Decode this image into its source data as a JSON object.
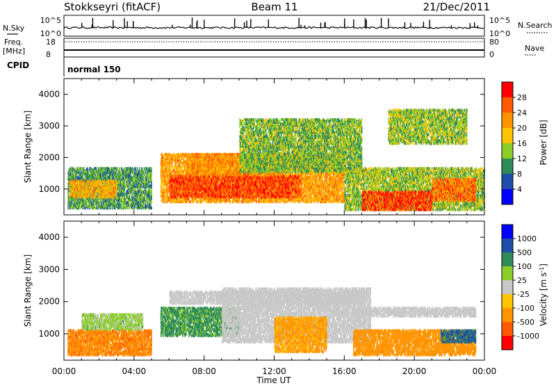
{
  "header": {
    "station": "Stokkseyri (fitACF)",
    "beam": "Beam 11",
    "date": "21/Dec/2011"
  },
  "params": {
    "nsky_label": "N.Sky",
    "nsearch_label": "N.Search",
    "noise_ticks": [
      "10^5",
      "10^0"
    ],
    "freq_label_1": "Freq.",
    "freq_label_2": "[MHz]",
    "freq_ticks": [
      "18",
      "8"
    ],
    "nave_label": "Nave",
    "nave_ticks": [
      "80",
      "0"
    ],
    "cpid_label": "CPID",
    "cpid_value": "normal 150"
  },
  "chart_data": [
    {
      "type": "heatmap",
      "title": "",
      "xlabel": "Time UT",
      "ylabel": "Slant Range [km]",
      "x_ticks": [
        "00:00",
        "04:00",
        "08:00",
        "12:00",
        "16:00",
        "20:00",
        "00:00"
      ],
      "x_range_hours": [
        0,
        24
      ],
      "y_ticks": [
        1000,
        2000,
        3000,
        4000
      ],
      "ylim": [
        180,
        4500
      ],
      "colorbar": {
        "label": "Power [dB]",
        "ticks": [
          "28",
          "24",
          "20",
          "16",
          "12",
          "8",
          "4"
        ],
        "colors": [
          "#ff0000",
          "#ff5a00",
          "#ff9400",
          "#ffc300",
          "#8ccd2a",
          "#2e8a58",
          "#1f4ea8",
          "#0000ff"
        ]
      },
      "regions": [
        {
          "t": [
            0.2,
            5.0
          ],
          "r": [
            350,
            1650
          ],
          "v": 11
        },
        {
          "t": [
            0.3,
            3.0
          ],
          "r": [
            700,
            1250
          ],
          "v": 20
        },
        {
          "t": [
            5.5,
            16.0
          ],
          "r": [
            550,
            2100
          ],
          "v": 21
        },
        {
          "t": [
            6.0,
            13.5
          ],
          "r": [
            700,
            1400
          ],
          "v": 27
        },
        {
          "t": [
            7.0,
            12.5
          ],
          "r": [
            1400,
            2100
          ],
          "v": 22
        },
        {
          "t": [
            10.0,
            17.0
          ],
          "r": [
            1500,
            3200
          ],
          "v": 13
        },
        {
          "t": [
            16.0,
            24.0
          ],
          "r": [
            300,
            1650
          ],
          "v": 14
        },
        {
          "t": [
            17.0,
            21.0
          ],
          "r": [
            300,
            900
          ],
          "v": 27
        },
        {
          "t": [
            21.0,
            23.5
          ],
          "r": [
            600,
            1300
          ],
          "v": 24
        },
        {
          "t": [
            18.5,
            23.0
          ],
          "r": [
            2400,
            3500
          ],
          "v": 14
        }
      ]
    },
    {
      "type": "heatmap",
      "title": "",
      "xlabel": "Time UT",
      "ylabel": "Slant Range [km]",
      "x_ticks": [
        "00:00",
        "04:00",
        "08:00",
        "12:00",
        "16:00",
        "20:00",
        "00:00"
      ],
      "x_range_hours": [
        0,
        24
      ],
      "y_ticks": [
        1000,
        2000,
        3000,
        4000
      ],
      "ylim": [
        180,
        4500
      ],
      "colorbar": {
        "label": "Velocity [m s^-1]",
        "ticks": [
          "1000",
          "500",
          "100",
          "25",
          "-25",
          "-100",
          "-500",
          "-1000"
        ],
        "colors": [
          "#0000ff",
          "#1f4ea8",
          "#2e8a58",
          "#8ccd2a",
          "#c8c8c8",
          "#ffc300",
          "#ff9400",
          "#ff5a00",
          "#ff0000"
        ]
      },
      "regions": [
        {
          "t": [
            0.2,
            5.0
          ],
          "r": [
            300,
            1100
          ],
          "v": -400
        },
        {
          "t": [
            1.0,
            4.5
          ],
          "r": [
            1100,
            1600
          ],
          "v": 50
        },
        {
          "t": [
            5.5,
            10.0
          ],
          "r": [
            900,
            1800
          ],
          "v": 150
        },
        {
          "t": [
            9.0,
            17.5
          ],
          "r": [
            700,
            2400
          ],
          "v": 0
        },
        {
          "t": [
            6.0,
            17.0
          ],
          "r": [
            1900,
            2300
          ],
          "v": 0
        },
        {
          "t": [
            12.0,
            15.0
          ],
          "r": [
            400,
            1500
          ],
          "v": -150
        },
        {
          "t": [
            16.5,
            23.5
          ],
          "r": [
            300,
            1100
          ],
          "v": -250
        },
        {
          "t": [
            16.5,
            23.5
          ],
          "r": [
            1500,
            1800
          ],
          "v": 0
        },
        {
          "t": [
            21.5,
            23.5
          ],
          "r": [
            700,
            1100
          ],
          "v": 600
        }
      ]
    }
  ]
}
